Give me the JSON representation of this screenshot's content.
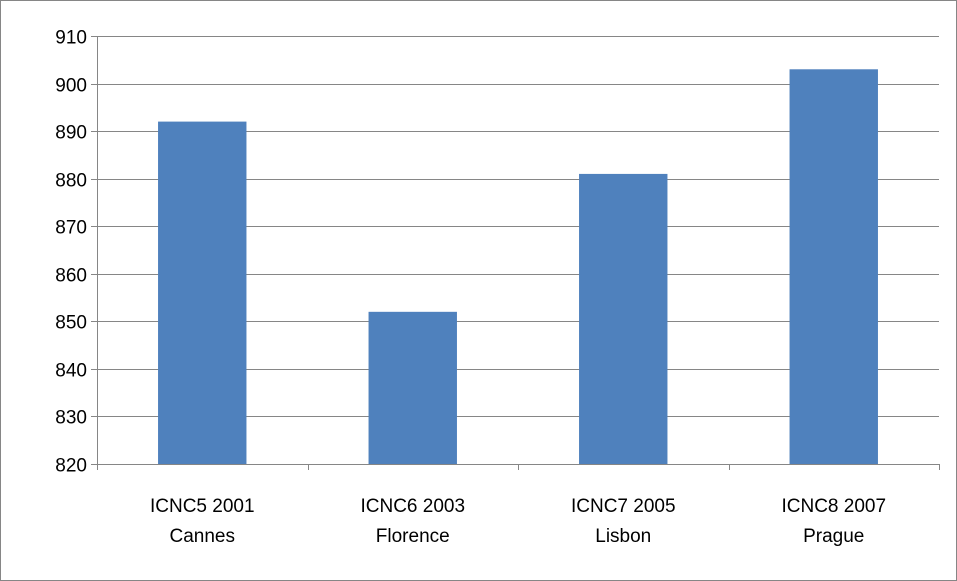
{
  "chart_data": {
    "type": "bar",
    "title": "",
    "xlabel": "",
    "ylabel": "",
    "categories": [
      [
        "ICNC5 2001",
        "Cannes"
      ],
      [
        "ICNC6 2003",
        "Florence"
      ],
      [
        "ICNC7 2005",
        "Lisbon"
      ],
      [
        "ICNC8 2007",
        "Prague"
      ]
    ],
    "values": [
      892,
      852,
      881,
      903
    ],
    "ylim": [
      820,
      910
    ],
    "yticks": [
      820,
      830,
      840,
      850,
      860,
      870,
      880,
      890,
      900,
      910
    ],
    "grid": true,
    "legend": "none",
    "colors": {
      "bar": "#4F81BD",
      "bar_edge": "#3F6FA8",
      "grid": "#868686",
      "axis": "#868686",
      "frame": "#868686"
    }
  }
}
